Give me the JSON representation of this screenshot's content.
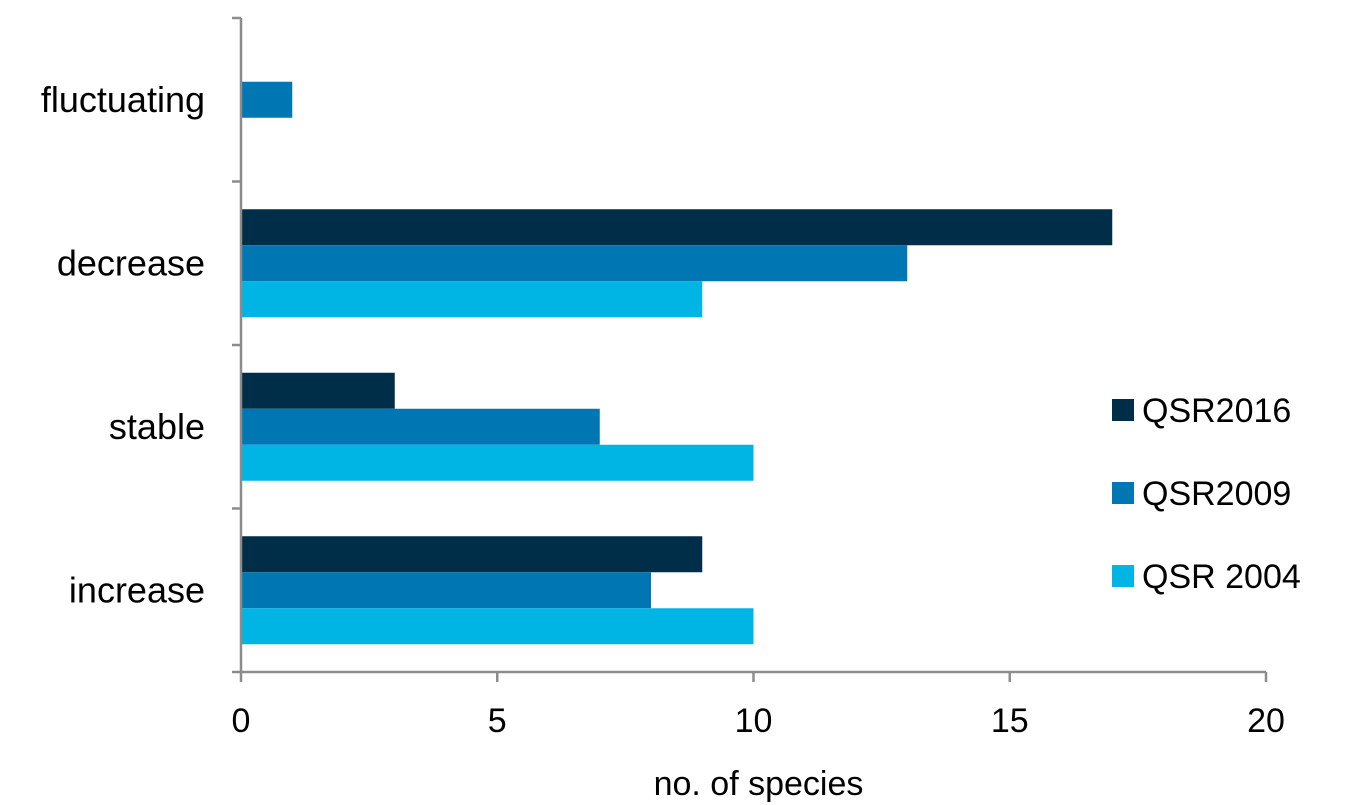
{
  "chart_data": {
    "type": "bar",
    "orientation": "horizontal",
    "categories": [
      "increase",
      "stable",
      "decrease",
      "fluctuating"
    ],
    "series": [
      {
        "name": "QSR2016",
        "color": "#002d47",
        "values": [
          9,
          3,
          17,
          0
        ]
      },
      {
        "name": "QSR2009",
        "color": "#0076b3",
        "values": [
          8,
          7,
          13,
          1
        ]
      },
      {
        "name": "QSR 2004",
        "color": "#00b4e3",
        "values": [
          10,
          10,
          9,
          0
        ]
      }
    ],
    "xlabel": "no. of species",
    "ylabel": "",
    "xlim": [
      0,
      20
    ],
    "xticks": [
      "0",
      "5",
      "10",
      "15",
      "20"
    ],
    "grid": false,
    "legend_position": "right"
  }
}
